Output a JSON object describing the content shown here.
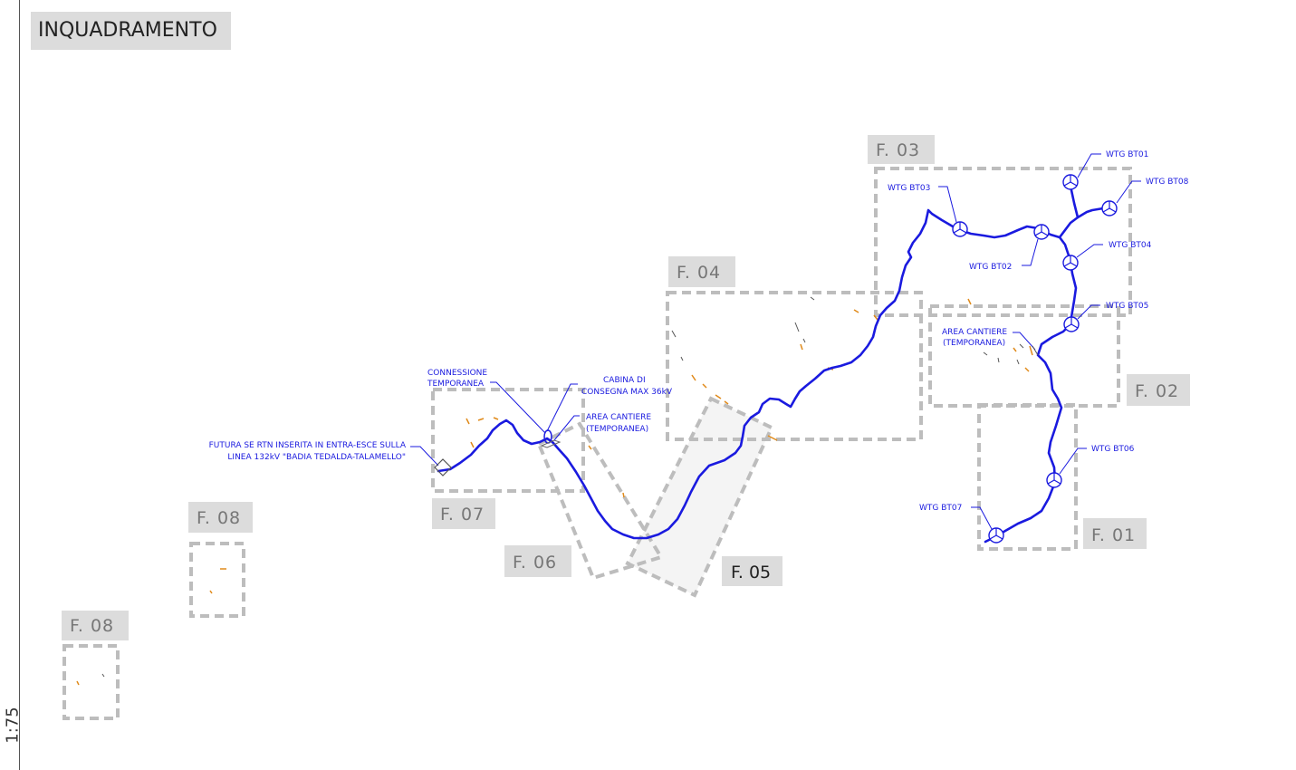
{
  "title": "INQUADRAMENTO",
  "side_label": "1:75",
  "frames": [
    {
      "id": "f01",
      "label": "F. 01"
    },
    {
      "id": "f02",
      "label": "F. 02"
    },
    {
      "id": "f03",
      "label": "F. 03"
    },
    {
      "id": "f04",
      "label": "F. 04"
    },
    {
      "id": "f05",
      "label": "F. 05"
    },
    {
      "id": "f06",
      "label": "F. 06"
    },
    {
      "id": "f07",
      "label": "F. 07"
    },
    {
      "id": "f08a",
      "label": "F. 08"
    },
    {
      "id": "f08b",
      "label": "F. 08"
    }
  ],
  "turbines": [
    {
      "id": "bt01",
      "label": "WTG BT01"
    },
    {
      "id": "bt02",
      "label": "WTG BT02"
    },
    {
      "id": "bt03",
      "label": "WTG BT03"
    },
    {
      "id": "bt04",
      "label": "WTG BT04"
    },
    {
      "id": "bt05",
      "label": "WTG BT05"
    },
    {
      "id": "bt06",
      "label": "WTG BT06"
    },
    {
      "id": "bt07",
      "label": "WTG BT07"
    },
    {
      "id": "bt08",
      "label": "WTG BT08"
    }
  ],
  "annotations": {
    "connessione": [
      "CONNESSIONE",
      "TEMPORANEA"
    ],
    "cabina": [
      "CABINA DI",
      "CONSEGNA MAX 36kV"
    ],
    "area_cantiere_west": [
      "AREA CANTIERE",
      "(TEMPORANEA)"
    ],
    "area_cantiere_east": [
      "AREA CANTIERE",
      "(TEMPORANEA)"
    ],
    "futura": [
      "FUTURA SE RTN INSERITA IN ENTRA-ESCE SULLA",
      "LINEA 132kV \"BADIA TEDALDA-TALAMELLO\""
    ]
  },
  "colors": {
    "route": "#1a1adf",
    "frame": "#bdbdbd",
    "label_bg": "#dcdcdc",
    "accent_marks": "#e08a1a"
  }
}
